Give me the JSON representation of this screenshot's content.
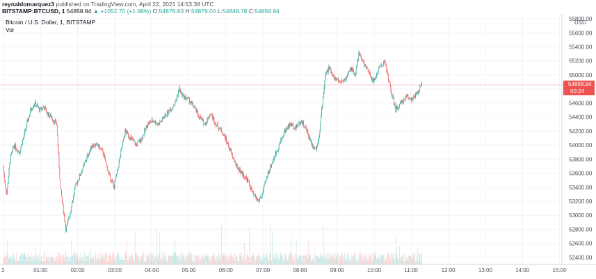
{
  "header": {
    "author": "reynaldomarquez3",
    "published": "published on TradingView.com, April 22, 2021 14:53:38 UTC",
    "symbol": "BITSTAMP:BTCUSD, 1",
    "last": "54858.94",
    "change_arrow": "▲",
    "change": "+1052.70 (+1.96%)",
    "o_label": "O:",
    "o_value": "54878.93",
    "h_label": "H:",
    "h_value": "54879.00",
    "l_label": "L:",
    "l_value": "54848.78",
    "c_label": "C:",
    "c_value": "54858.94"
  },
  "legend": {
    "title": "Bitcoin / U.S. Dollar, 1, BITSTAMP",
    "vol": "Vol"
  },
  "price_tag": {
    "value": "54858.94",
    "countdown": "00:24"
  },
  "colors": {
    "up": "#26a69a",
    "down": "#ef5350",
    "grid": "#f0f3fa",
    "axis": "#d1d4dc",
    "price_line": "#ef5350"
  },
  "chart_data": {
    "type": "candlestick",
    "currency": "USD",
    "ylim": [
      52300,
      55850
    ],
    "y_ticks": [
      "55800.00",
      "55600.00",
      "55400.00",
      "55200.00",
      "55000.00",
      "54800.00",
      "54600.00",
      "54400.00",
      "54200.00",
      "54000.00",
      "53800.00",
      "53600.00",
      "53400.00",
      "53200.00",
      "53000.00",
      "52800.00",
      "52600.00",
      "52400.00"
    ],
    "x_ticks": [
      "2",
      "01:00",
      "02:00",
      "03:00",
      "04:00",
      "05:00",
      "06:00",
      "07:00",
      "08:00",
      "09:00",
      "10:00",
      "11:00",
      "12:00",
      "13:00",
      "14:00",
      "15:00"
    ],
    "last_price": 54858.94,
    "price_path": [
      [
        0.0,
        53700
      ],
      [
        0.05,
        53500
      ],
      [
        0.1,
        53300
      ],
      [
        0.2,
        53800
      ],
      [
        0.3,
        54000
      ],
      [
        0.45,
        53900
      ],
      [
        0.6,
        54200
      ],
      [
        0.75,
        54500
      ],
      [
        0.85,
        54600
      ],
      [
        1.0,
        54500
      ],
      [
        1.1,
        54550
      ],
      [
        1.2,
        54450
      ],
      [
        1.3,
        54400
      ],
      [
        1.45,
        54300
      ],
      [
        1.55,
        53400
      ],
      [
        1.7,
        52800
      ],
      [
        1.8,
        53000
      ],
      [
        1.95,
        53400
      ],
      [
        2.1,
        53600
      ],
      [
        2.25,
        53800
      ],
      [
        2.4,
        54000
      ],
      [
        2.55,
        54000
      ],
      [
        2.7,
        53900
      ],
      [
        2.85,
        53600
      ],
      [
        3.0,
        53400
      ],
      [
        3.15,
        53800
      ],
      [
        3.3,
        54200
      ],
      [
        3.45,
        54100
      ],
      [
        3.6,
        54000
      ],
      [
        3.75,
        54100
      ],
      [
        3.9,
        54300
      ],
      [
        4.05,
        54350
      ],
      [
        4.2,
        54300
      ],
      [
        4.35,
        54400
      ],
      [
        4.5,
        54500
      ],
      [
        4.65,
        54600
      ],
      [
        4.75,
        54800
      ],
      [
        4.85,
        54700
      ],
      [
        5.0,
        54650
      ],
      [
        5.15,
        54550
      ],
      [
        5.3,
        54400
      ],
      [
        5.45,
        54300
      ],
      [
        5.6,
        54450
      ],
      [
        5.75,
        54300
      ],
      [
        5.9,
        54200
      ],
      [
        6.0,
        54100
      ],
      [
        6.15,
        53900
      ],
      [
        6.3,
        53700
      ],
      [
        6.45,
        53600
      ],
      [
        6.6,
        53500
      ],
      [
        6.75,
        53300
      ],
      [
        6.9,
        53200
      ],
      [
        7.0,
        53300
      ],
      [
        7.15,
        53600
      ],
      [
        7.3,
        53800
      ],
      [
        7.45,
        54000
      ],
      [
        7.6,
        54200
      ],
      [
        7.75,
        54300
      ],
      [
        7.9,
        54250
      ],
      [
        8.05,
        54350
      ],
      [
        8.2,
        54200
      ],
      [
        8.35,
        54000
      ],
      [
        8.45,
        53950
      ],
      [
        8.55,
        54200
      ],
      [
        8.6,
        54500
      ],
      [
        8.7,
        55000
      ],
      [
        8.8,
        55100
      ],
      [
        8.95,
        54950
      ],
      [
        9.1,
        54900
      ],
      [
        9.25,
        54950
      ],
      [
        9.4,
        55100
      ],
      [
        9.5,
        55000
      ],
      [
        9.6,
        55300
      ],
      [
        9.7,
        55200
      ],
      [
        9.85,
        55050
      ],
      [
        10.0,
        54900
      ],
      [
        10.15,
        55100
      ],
      [
        10.3,
        55200
      ],
      [
        10.4,
        54950
      ],
      [
        10.5,
        54700
      ],
      [
        10.6,
        54500
      ],
      [
        10.75,
        54600
      ],
      [
        10.9,
        54700
      ],
      [
        11.05,
        54650
      ],
      [
        11.2,
        54750
      ],
      [
        11.3,
        54858.94
      ]
    ]
  }
}
